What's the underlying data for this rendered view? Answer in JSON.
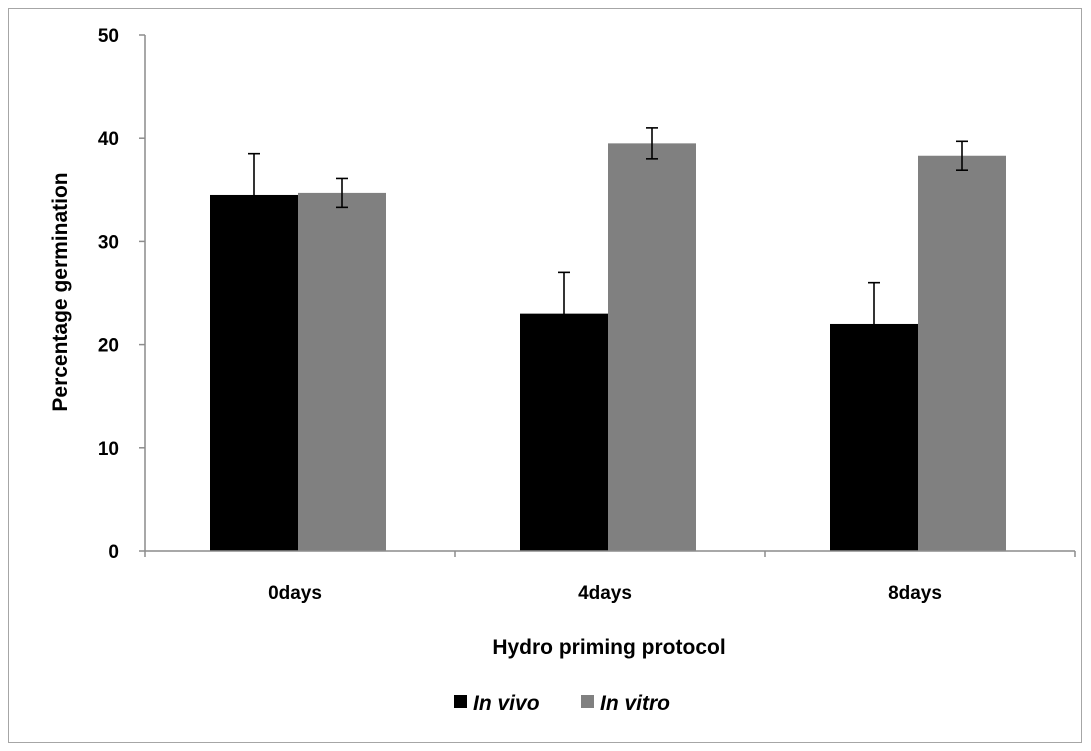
{
  "chart_data": {
    "type": "bar",
    "title": "",
    "xlabel": "Hydro priming protocol",
    "ylabel": "Percentage germination",
    "categories": [
      "0days",
      "4days",
      "8days"
    ],
    "ylim": [
      0,
      50
    ],
    "yticks": [
      "0",
      "10",
      "20",
      "30",
      "40",
      "50"
    ],
    "grid": false,
    "legend_position": "bottom",
    "series": [
      {
        "name": "In vivo",
        "values": [
          34.5,
          23,
          22
        ],
        "errors": [
          4,
          4,
          4
        ],
        "color": "#000000"
      },
      {
        "name": "In vitro",
        "values": [
          34.7,
          39.5,
          38.3
        ],
        "errors": [
          1.4,
          1.5,
          1.4
        ],
        "color": "#808080"
      }
    ]
  }
}
